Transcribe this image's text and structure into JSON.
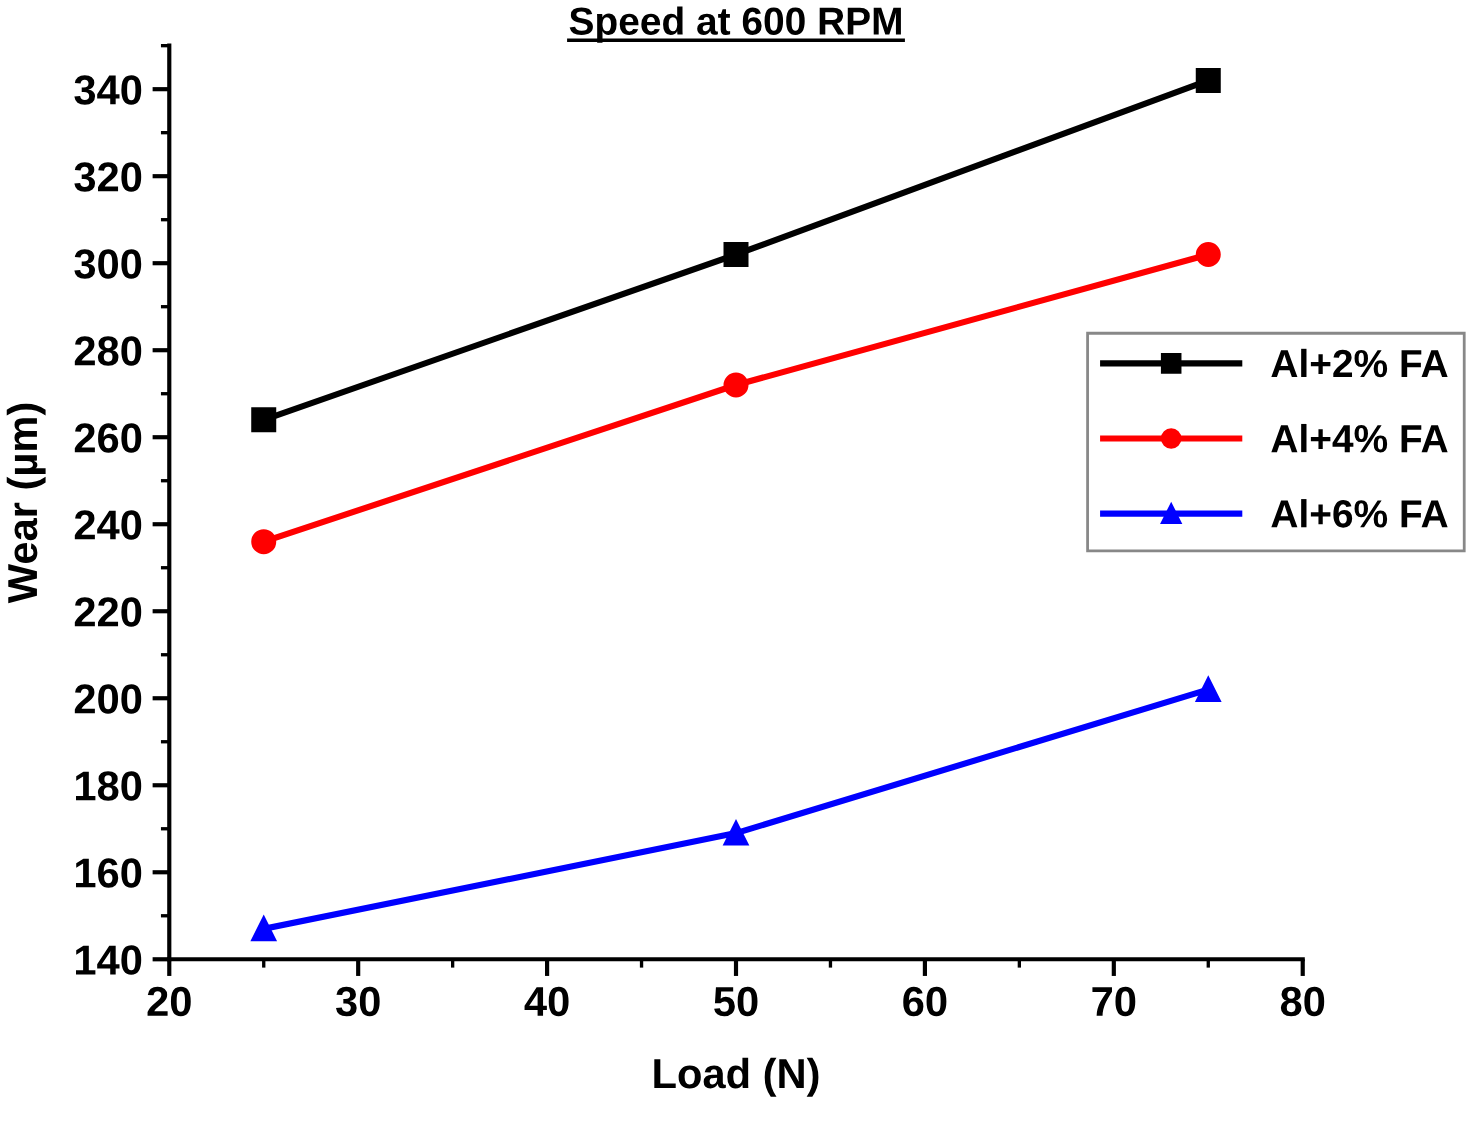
{
  "chart_data": {
    "type": "line",
    "title": "Speed at 600 RPM",
    "xlabel": "Load (N)",
    "ylabel": "Wear (µm)",
    "x": [
      25,
      50,
      75
    ],
    "series": [
      {
        "name": "Al+2% FA",
        "color": "#000000",
        "marker": "square",
        "values": [
          264,
          302,
          342
        ]
      },
      {
        "name": "Al+4% FA",
        "color": "#ff0000",
        "marker": "circle",
        "values": [
          236,
          272,
          302
        ]
      },
      {
        "name": "Al+6% FA",
        "color": "#0000ff",
        "marker": "triangle",
        "values": [
          147,
          169,
          202
        ]
      }
    ],
    "xlim": [
      20,
      80
    ],
    "xticks": [
      20,
      30,
      40,
      50,
      60,
      70,
      80
    ],
    "ylim": [
      140,
      350
    ],
    "yticks": [
      140,
      160,
      180,
      200,
      220,
      240,
      260,
      280,
      300,
      320,
      340
    ],
    "grid": false,
    "legend": "right",
    "line_style": "solid"
  }
}
